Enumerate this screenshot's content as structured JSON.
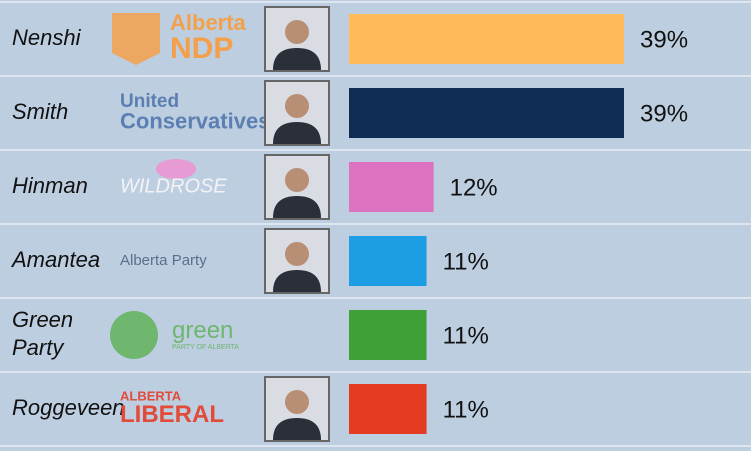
{
  "chart_data": {
    "type": "bar",
    "orientation": "horizontal",
    "categories": [
      "Nenshi",
      "Smith",
      "Hinman",
      "Amantea",
      "Green Party",
      "Roggeveen"
    ],
    "values": [
      39,
      39,
      12,
      11,
      11,
      11
    ],
    "value_labels": [
      "39%",
      "39%",
      "12%",
      "11%",
      "11%",
      "11%"
    ],
    "colors": [
      "#ffba5a",
      "#0e2c54",
      "#dd72c1",
      "#1d9de3",
      "#3ea037",
      "#e43b22"
    ],
    "logos": [
      {
        "lines": [
          "Alberta",
          "NDP"
        ],
        "color": "#f4a04a"
      },
      {
        "lines": [
          "United",
          "Conservatives"
        ],
        "color": "#5b7fb2"
      },
      {
        "lines": [
          "WILDROSE"
        ],
        "color": "#f3f3f6"
      },
      {
        "lines": [
          "Alberta Party"
        ],
        "color": "#5a6f88"
      },
      {
        "lines": [
          "green",
          "PARTY OF ALBERTA"
        ],
        "color": "#6fb66e"
      },
      {
        "lines": [
          "ALBERTA",
          "LIBERAL"
        ],
        "color": "#e24a3a"
      }
    ]
  }
}
